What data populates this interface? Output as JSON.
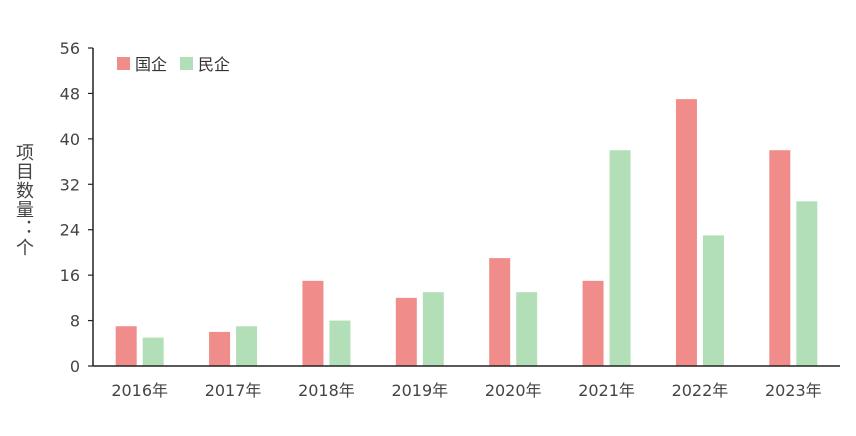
{
  "chart_data": {
    "type": "bar",
    "categories": [
      "2016年",
      "2017年",
      "2018年",
      "2019年",
      "2020年",
      "2021年",
      "2022年",
      "2023年"
    ],
    "series": [
      {
        "name": "国企",
        "color": "#f08c8a",
        "values": [
          7,
          6,
          15,
          12,
          19,
          15,
          47,
          38
        ]
      },
      {
        "name": "民企",
        "color": "#b3dfb8",
        "values": [
          5,
          7,
          8,
          13,
          13,
          38,
          23,
          29
        ]
      }
    ],
    "ylabel": "项目数量：个",
    "ylim": [
      0,
      56
    ],
    "yticks": [
      0,
      8,
      16,
      24,
      32,
      40,
      48,
      56
    ],
    "grid": false,
    "legend_position": "top-left"
  }
}
